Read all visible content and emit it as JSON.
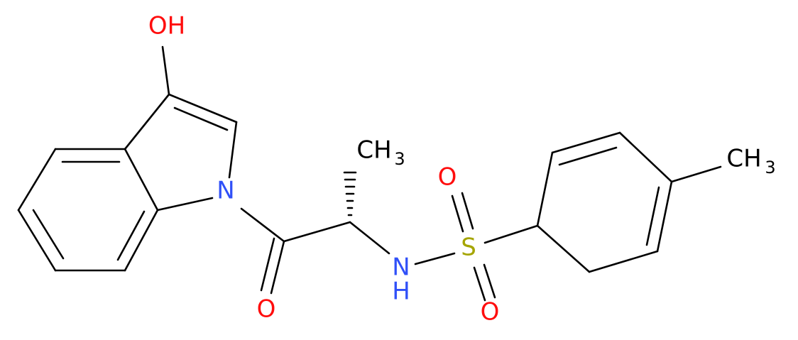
{
  "atoms": [
    {
      "label": "OH"
    },
    {
      "label": "N"
    },
    {
      "label": "O"
    },
    {
      "label": "CH",
      "subscript": "3"
    },
    {
      "label": "N",
      "hydrogen": "H"
    },
    {
      "label": "S"
    },
    {
      "label": "O"
    },
    {
      "label": "O"
    },
    {
      "label": "CH",
      "subscript": "3"
    }
  ]
}
